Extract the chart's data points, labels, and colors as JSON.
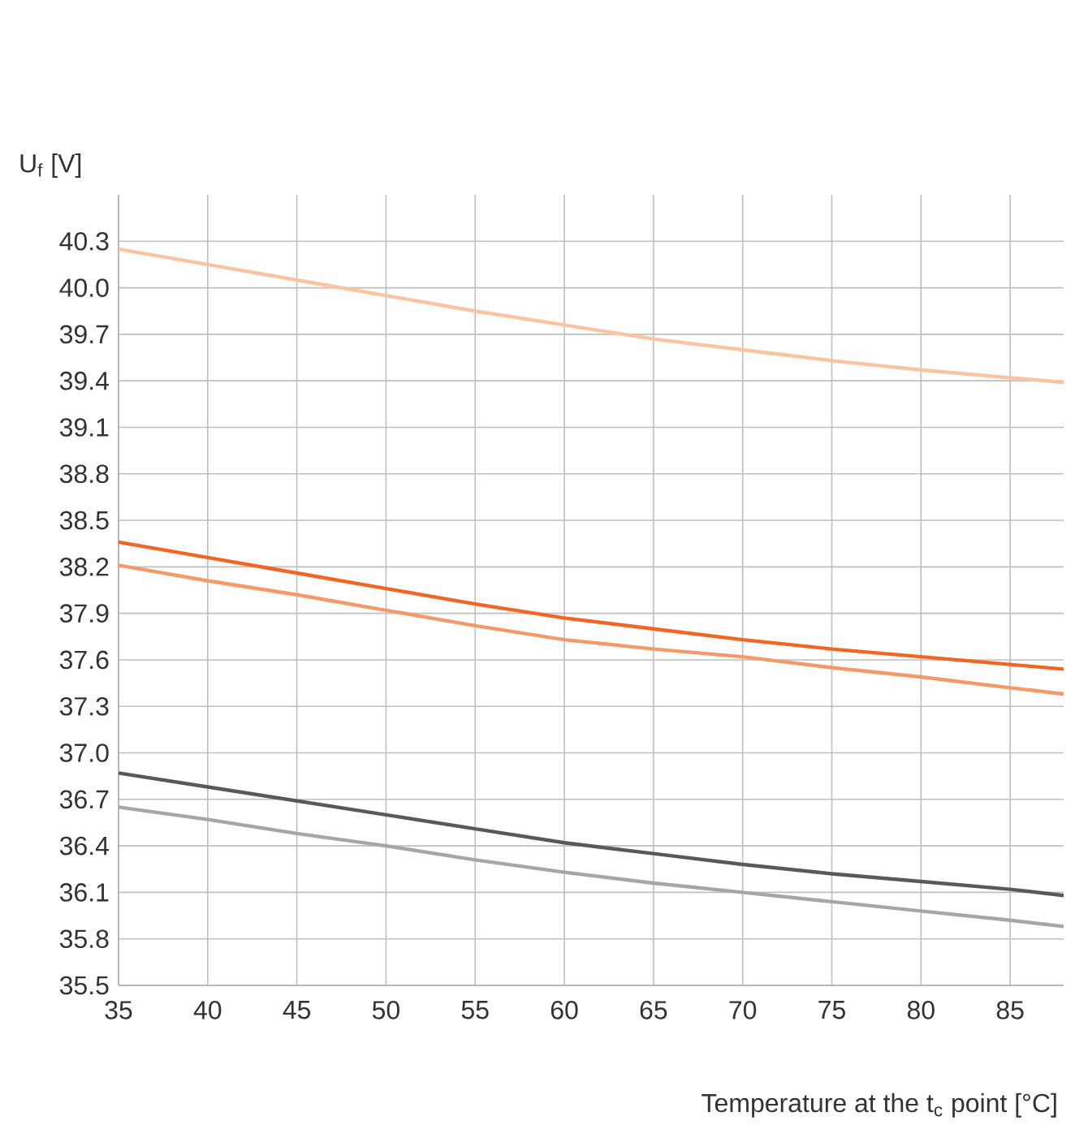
{
  "chart_data": {
    "type": "line",
    "xlabel": "Temperature at the t$_{c}$ point [°C]",
    "ylabel": "U$_{f}$ [V]",
    "x": [
      35,
      40,
      45,
      50,
      55,
      60,
      65,
      70,
      75,
      80,
      85,
      88
    ],
    "series": [
      {
        "color": "#f26522",
        "values": [
          38.36,
          38.26,
          38.16,
          38.06,
          37.96,
          37.87,
          37.8,
          37.73,
          37.67,
          37.62,
          37.57,
          37.54
        ]
      },
      {
        "color": "#f49a6a",
        "values": [
          38.21,
          38.11,
          38.02,
          37.92,
          37.82,
          37.73,
          37.67,
          37.62,
          37.55,
          37.49,
          37.42,
          37.38
        ]
      },
      {
        "color": "#fbc4a0",
        "values": [
          40.25,
          40.15,
          40.05,
          39.95,
          39.85,
          39.76,
          39.67,
          39.6,
          39.53,
          39.47,
          39.42,
          39.39
        ]
      },
      {
        "color": "#595959",
        "values": [
          36.87,
          36.78,
          36.69,
          36.6,
          36.51,
          36.42,
          36.35,
          36.28,
          36.22,
          36.17,
          36.12,
          36.08
        ]
      },
      {
        "color": "#a6a6a6",
        "values": [
          36.65,
          36.57,
          36.48,
          36.4,
          36.31,
          36.23,
          36.16,
          36.1,
          36.04,
          35.98,
          35.92,
          35.88
        ]
      }
    ],
    "xlim": [
      35,
      88
    ],
    "ylim": [
      35.5,
      40.6
    ],
    "xticks": [
      35,
      40,
      45,
      50,
      55,
      60,
      65,
      70,
      75,
      80,
      85
    ],
    "yticks": [
      35.5,
      35.8,
      36.1,
      36.4,
      36.7,
      {
        "value": 37,
        "label": "37.0"
      },
      37.3,
      37.6,
      37.9,
      38.2,
      38.5,
      38.8,
      39.1,
      39.4,
      39.7,
      {
        "value": 40,
        "label": "40.0"
      },
      40.3
    ],
    "grid": true,
    "line_style": "solid",
    "marker": "none"
  }
}
